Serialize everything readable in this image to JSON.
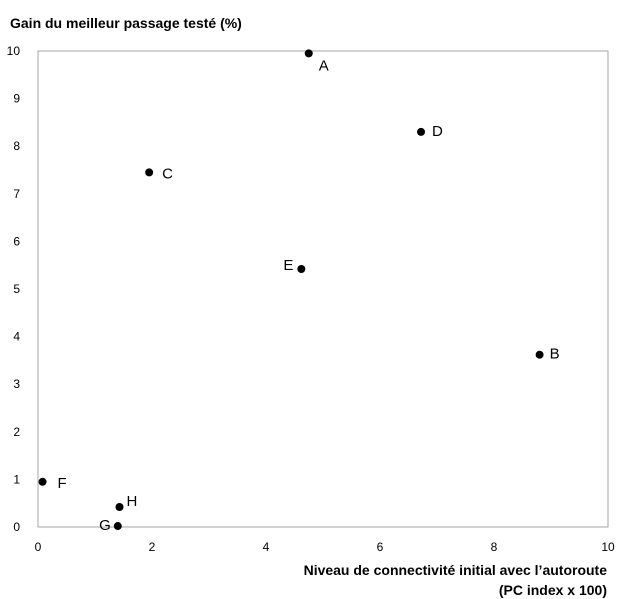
{
  "chart_data": {
    "type": "scatter",
    "ylabel": "Gain du meilleur passage testé (%)",
    "xlabel_line1": "Niveau de connectivité initial avec l’autoroute",
    "xlabel_line2": "(PC index x 100)",
    "xlim": [
      0,
      10
    ],
    "ylim": [
      0,
      10
    ],
    "x_ticks": [
      0,
      2,
      4,
      6,
      8,
      10
    ],
    "y_ticks": [
      0,
      1,
      2,
      3,
      4,
      5,
      6,
      7,
      8,
      9,
      10
    ],
    "grid": false,
    "points": [
      {
        "label": "A",
        "x": 4.75,
        "y": 9.95
      },
      {
        "label": "B",
        "x": 8.8,
        "y": 3.62
      },
      {
        "label": "C",
        "x": 1.95,
        "y": 7.45
      },
      {
        "label": "D",
        "x": 6.72,
        "y": 8.3
      },
      {
        "label": "E",
        "x": 4.62,
        "y": 5.42
      },
      {
        "label": "F",
        "x": 0.08,
        "y": 0.95
      },
      {
        "label": "G",
        "x": 1.4,
        "y": 0.02
      },
      {
        "label": "H",
        "x": 1.43,
        "y": 0.42
      }
    ]
  }
}
